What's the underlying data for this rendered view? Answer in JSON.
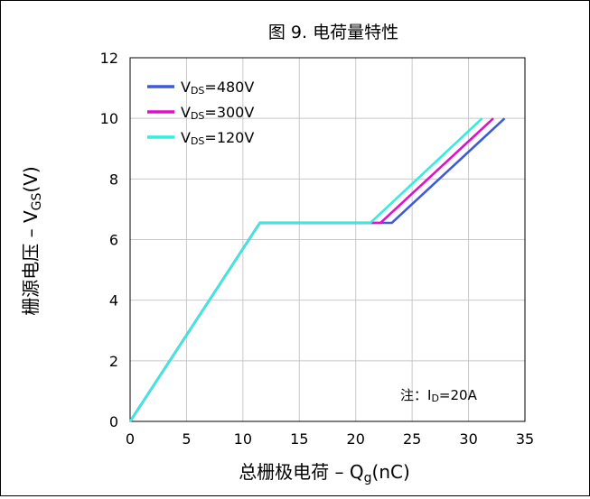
{
  "chart_data": {
    "type": "line",
    "title": "图 9. 电荷量特性",
    "xlabel": {
      "main": "总栅极电荷 – Q",
      "sub": "g",
      "unit": "(nC)"
    },
    "ylabel": {
      "main": "栅源电压 – V",
      "sub": "GS",
      "unit": "(V)"
    },
    "xlim": [
      0,
      35
    ],
    "ylim": [
      0,
      12
    ],
    "x_ticks": [
      "0",
      "5",
      "10",
      "15",
      "20",
      "25",
      "30",
      "35"
    ],
    "y_ticks": [
      "0",
      "2",
      "4",
      "6",
      "8",
      "10",
      "12"
    ],
    "grid": true,
    "legend_position": "top-left",
    "note": {
      "prefix": "注：I",
      "sub": "D",
      "suffix": "=20A"
    },
    "series": [
      {
        "name": "V_DS=480V",
        "label_main": "V",
        "label_sub": "DS",
        "label_rest": "=480V",
        "color": "#3b5bdb",
        "points": [
          [
            0,
            0
          ],
          [
            11.5,
            6.55
          ],
          [
            23.2,
            6.55
          ],
          [
            33.2,
            10.0
          ]
        ]
      },
      {
        "name": "V_DS=300V",
        "label_main": "V",
        "label_sub": "DS",
        "label_rest": "=300V",
        "color": "#e10ecc",
        "points": [
          [
            0,
            0
          ],
          [
            11.5,
            6.55
          ],
          [
            22.2,
            6.55
          ],
          [
            32.2,
            10.0
          ]
        ]
      },
      {
        "name": "V_DS=120V",
        "label_main": "V",
        "label_sub": "DS",
        "label_rest": "=120V",
        "color": "#33eedd",
        "points": [
          [
            0,
            0
          ],
          [
            11.5,
            6.55
          ],
          [
            21.3,
            6.55
          ],
          [
            31.2,
            10.0
          ]
        ]
      }
    ]
  }
}
